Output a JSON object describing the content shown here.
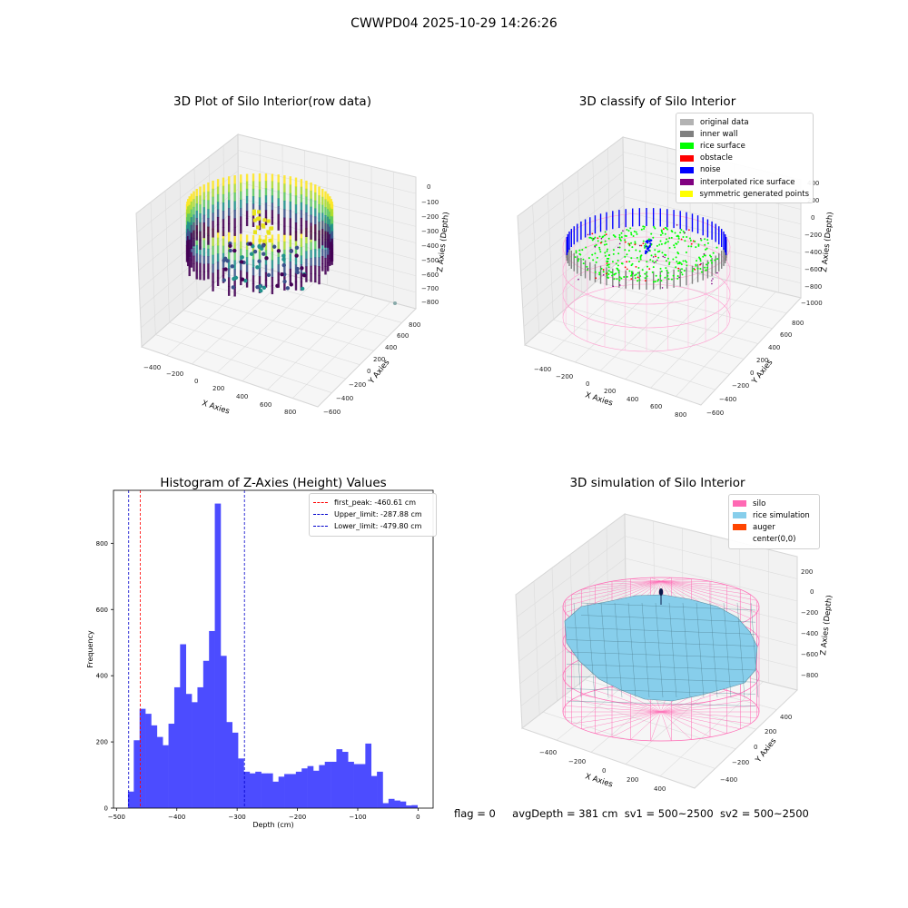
{
  "figure": {
    "suptitle": "CWWPD04 2025-10-29 14:26:26",
    "footer": {
      "flag": "flag = 0",
      "avg_depth": "avgDepth = 381 cm",
      "sv1": "sv1 = 500~2500",
      "sv2": "sv2 = 500~2500"
    }
  },
  "colors": {
    "histogram_bar": "#4c4cff",
    "first_peak": "#ff0000",
    "upper_limit": "#0000cc",
    "lower_limit": "#0000cc",
    "silo": "#ff69b4",
    "rice_simulation": "#87ceeb",
    "auger": "#ff4500",
    "original_data": "#b3b3b3",
    "inner_wall": "#808080",
    "rice_surface": "#00ff00",
    "obstacle": "#ff0000",
    "noise": "#0000ff",
    "interpolated_rice_surface": "#800080",
    "symmetric_generated_points": "#ffff00"
  },
  "chart_data": [
    {
      "type": "scatter",
      "title": "3D Plot of Silo Interior(row data)",
      "xlabel": "X Axies",
      "ylabel": "Y Axies",
      "zlabel": "Z Axies (Depth)",
      "x_ticks": [
        "−400",
        "−200",
        "0",
        "200",
        "400",
        "600",
        "800"
      ],
      "y_ticks": [
        "−600",
        "−400",
        "−200",
        "0",
        "200",
        "400",
        "600",
        "800"
      ],
      "z_ticks": [
        "0",
        "−100",
        "−200",
        "−300",
        "−400",
        "−500",
        "−600",
        "−700",
        "−800"
      ],
      "colormap": "viridis",
      "grid": true
    },
    {
      "type": "scatter",
      "title": "3D classify of Silo Interior",
      "xlabel": "X Axies",
      "ylabel": "Y Axies",
      "zlabel": "Z Axies (Depth)",
      "x_ticks": [
        "−400",
        "−200",
        "0",
        "200",
        "400",
        "600",
        "800"
      ],
      "y_ticks": [
        "−600",
        "−400",
        "−200",
        "0",
        "200",
        "400",
        "600",
        "800"
      ],
      "z_ticks": [
        "400",
        "200",
        "0",
        "−200",
        "−400",
        "−600",
        "−800",
        "−1000"
      ],
      "legend": [
        {
          "label": "original data",
          "color_key": "original_data"
        },
        {
          "label": "inner wall",
          "color_key": "inner_wall"
        },
        {
          "label": "rice surface",
          "color_key": "rice_surface"
        },
        {
          "label": "obstacle",
          "color_key": "obstacle"
        },
        {
          "label": "noise",
          "color_key": "noise"
        },
        {
          "label": "interpolated rice surface",
          "color_key": "interpolated_rice_surface"
        },
        {
          "label": "symmetric generated points",
          "color_key": "symmetric_generated_points"
        }
      ],
      "legend_position": "top-right",
      "grid": true
    },
    {
      "type": "bar",
      "title": "Histogram of Z-Axies (Height) Values",
      "xlabel": "Depth (cm)",
      "ylabel": "Frequency",
      "xlim": [
        -505,
        25
      ],
      "ylim": [
        0,
        960
      ],
      "x_ticks": [
        -500,
        -400,
        -300,
        -200,
        -100,
        0
      ],
      "y_ticks": [
        0,
        200,
        400,
        600,
        800
      ],
      "x_tick_labels": [
        "−500",
        "−400",
        "−300",
        "−200",
        "−100",
        "0"
      ],
      "y_tick_labels": [
        "0",
        "200",
        "400",
        "600",
        "800"
      ],
      "bin_start": -481,
      "bin_width": 9.6,
      "values": [
        50,
        205,
        300,
        285,
        250,
        215,
        190,
        255,
        365,
        495,
        345,
        320,
        365,
        445,
        535,
        920,
        460,
        260,
        228,
        150,
        110,
        105,
        110,
        105,
        105,
        80,
        95,
        103,
        103,
        110,
        120,
        127,
        113,
        130,
        140,
        140,
        178,
        170,
        140,
        133,
        133,
        195,
        97,
        110,
        15,
        28,
        23,
        20,
        8,
        9
      ],
      "vlines": [
        {
          "label": "first_peak: -460.61 cm",
          "x": -460.61,
          "color_key": "first_peak"
        },
        {
          "label": "Upper_limit: -287.88 cm",
          "x": -287.88,
          "color_key": "upper_limit"
        },
        {
          "label": "Lower_limit: -479.80 cm",
          "x": -479.8,
          "color_key": "lower_limit"
        }
      ],
      "legend_position": "top-right",
      "grid": false
    },
    {
      "type": "surface",
      "title": "3D simulation of Silo Interior",
      "xlabel": "X Axies",
      "ylabel": "Y Axies",
      "zlabel": "Z Axies (Depth)",
      "x_ticks": [
        "−400",
        "−200",
        "0",
        "200",
        "400"
      ],
      "y_ticks": [
        "−400",
        "−200",
        "0",
        "200",
        "400"
      ],
      "z_ticks": [
        "200",
        "0",
        "−200",
        "−400",
        "−600",
        "−800"
      ],
      "legend": [
        {
          "label": "silo",
          "color_key": "silo"
        },
        {
          "label": "rice simulation",
          "color_key": "rice_simulation"
        },
        {
          "label": "auger",
          "color_key": "auger"
        },
        {
          "label": "center(0,0)",
          "color_key": null
        }
      ],
      "legend_position": "top-right",
      "grid": true
    }
  ]
}
